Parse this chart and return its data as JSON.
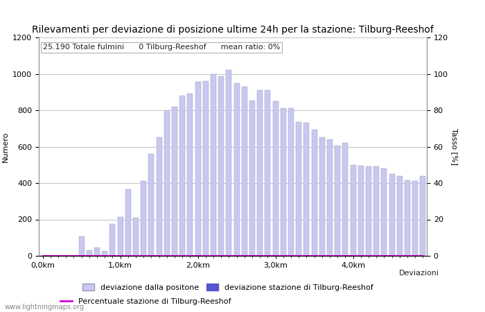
{
  "title": "Rilevamenti per deviazione di posizione ultime 24h per la stazione: Tilburg-Reeshof",
  "subtitle": "25.190 Totale fulmini      0 Tilburg-Reeshof      mean ratio: 0%",
  "ylabel_left": "Numero",
  "ylabel_right": "Tasso [%]",
  "xlabel": "Deviazioni",
  "watermark": "www.lightningmaps.org",
  "ylim_left": [
    0,
    1200
  ],
  "ylim_right": [
    0,
    120
  ],
  "xtick_positions": [
    0,
    10,
    20,
    30,
    40
  ],
  "xtick_labels": [
    "0,0km",
    "1,0km",
    "2,0km",
    "3,0km",
    "4,0km"
  ],
  "ytick_left": [
    0,
    200,
    400,
    600,
    800,
    1000,
    1200
  ],
  "ytick_right": [
    0,
    20,
    40,
    60,
    80,
    100,
    120
  ],
  "bar_color": "#c8c8f0",
  "bar_edge_color": "#9999bb",
  "station_bar_color": "#5555cc",
  "line_color": "#dd00dd",
  "legend1_label": "deviazione dalla positone",
  "legend2_label": "deviazione stazione di Tilburg-Reeshof",
  "legend3_label": "Percentuale stazione di Tilburg-Reeshof",
  "bar_heights": [
    0,
    0,
    0,
    0,
    0,
    105,
    30,
    45,
    25,
    175,
    215,
    365,
    210,
    410,
    560,
    650,
    800,
    820,
    880,
    890,
    955,
    960,
    1000,
    985,
    1020,
    950,
    930,
    855,
    910,
    910,
    850,
    810,
    810,
    735,
    730,
    695,
    650,
    640,
    605,
    620,
    500,
    495,
    490,
    490,
    480,
    450,
    440,
    415,
    410,
    440
  ],
  "station_heights": [
    0,
    0,
    0,
    0,
    0,
    0,
    0,
    0,
    0,
    0,
    0,
    0,
    0,
    0,
    0,
    0,
    0,
    0,
    0,
    0,
    0,
    0,
    0,
    0,
    0,
    0,
    0,
    0,
    0,
    0,
    0,
    0,
    0,
    0,
    0,
    0,
    0,
    0,
    0,
    0,
    0,
    0,
    0,
    0,
    0,
    0,
    0,
    0,
    0,
    0
  ],
  "line_values": [
    0,
    0,
    0,
    0,
    0,
    0,
    0,
    0,
    0,
    0,
    0,
    0,
    0,
    0,
    0,
    0,
    0,
    0,
    0,
    0,
    0,
    0,
    0,
    0,
    0,
    0,
    0,
    0,
    0,
    0,
    0,
    0,
    0,
    0,
    0,
    0,
    0,
    0,
    0,
    0,
    0,
    0,
    0,
    0,
    0,
    0,
    0,
    0,
    0,
    0
  ],
  "background_color": "#ffffff",
  "grid_color": "#aaaaaa",
  "title_fontsize": 10,
  "subtitle_fontsize": 8,
  "axis_label_fontsize": 8,
  "tick_fontsize": 8,
  "legend_fontsize": 8
}
